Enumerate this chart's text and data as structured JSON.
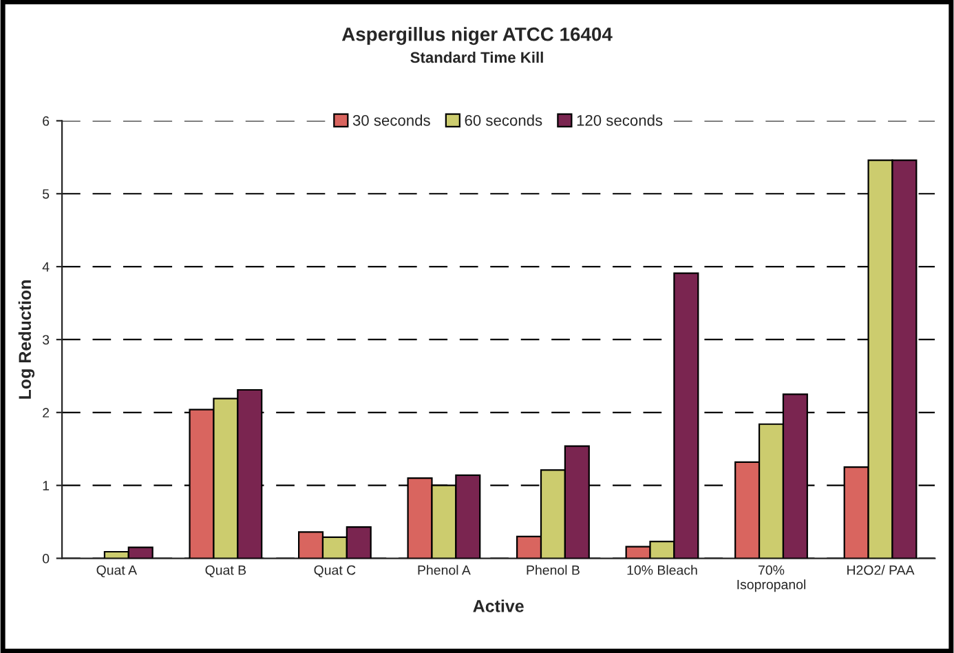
{
  "chart_data": {
    "type": "bar",
    "title": "Aspergillus niger ATCC 16404",
    "subtitle": "Standard Time Kill",
    "xlabel": "Active",
    "ylabel": "Log Reduction",
    "categories": [
      "Quat A",
      "Quat B",
      "Quat C",
      "Phenol A",
      "Phenol B",
      "10% Bleach",
      "70%\nIsopropanol",
      "H2O2/ PAA"
    ],
    "series": [
      {
        "name": "30 seconds",
        "color": "#d9655f",
        "values": [
          null,
          2.04,
          0.36,
          1.1,
          0.3,
          0.16,
          1.32,
          1.25
        ]
      },
      {
        "name": "60 seconds",
        "color": "#cccc6e",
        "values": [
          0.09,
          2.19,
          0.29,
          1.0,
          1.21,
          0.23,
          1.84,
          5.46
        ]
      },
      {
        "name": "120 seconds",
        "color": "#7a2550",
        "values": [
          0.15,
          2.31,
          0.43,
          1.14,
          1.54,
          3.91,
          2.25,
          5.46
        ]
      }
    ],
    "ylim": [
      0,
      6
    ],
    "yticks": [
      0,
      1,
      2,
      3,
      4,
      5,
      6
    ],
    "grid": "y",
    "legend": "top"
  }
}
